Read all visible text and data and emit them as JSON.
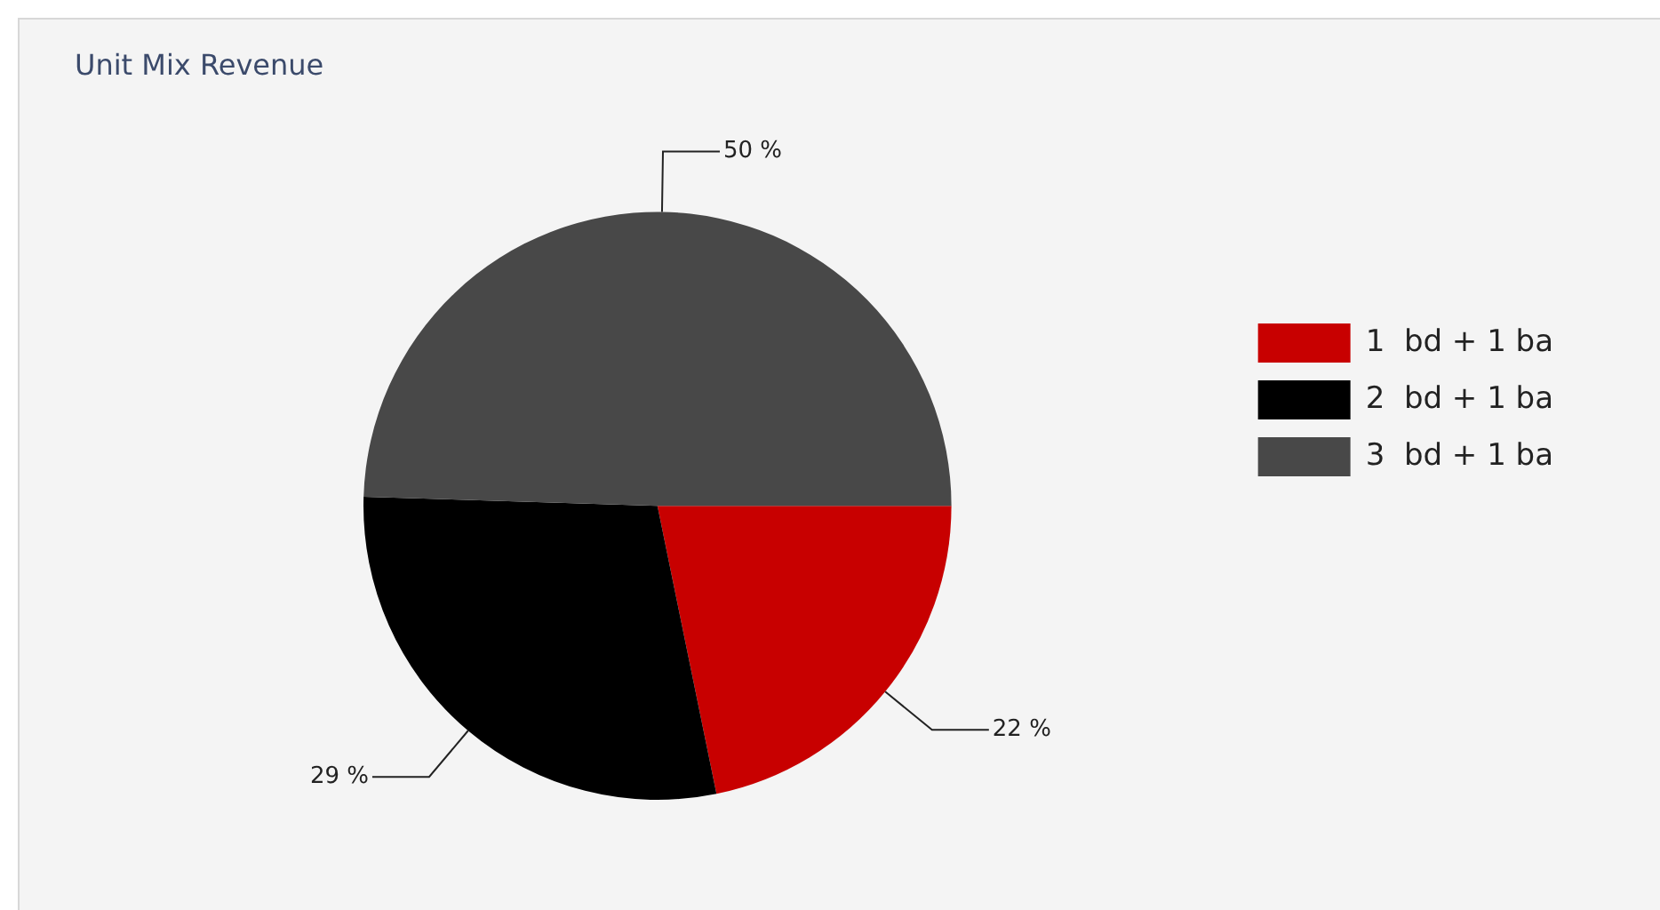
{
  "chart_data": {
    "type": "pie",
    "title": "Unit Mix Revenue",
    "categories": [
      "1  bd + 1 ba",
      "2  bd + 1 ba",
      "3  bd + 1 ba"
    ],
    "values": [
      22,
      29,
      50
    ],
    "colors": [
      "#c80000",
      "#000000",
      "#484848"
    ],
    "value_labels": [
      "22 %",
      "29 %",
      "50 %"
    ],
    "legend": "right"
  }
}
